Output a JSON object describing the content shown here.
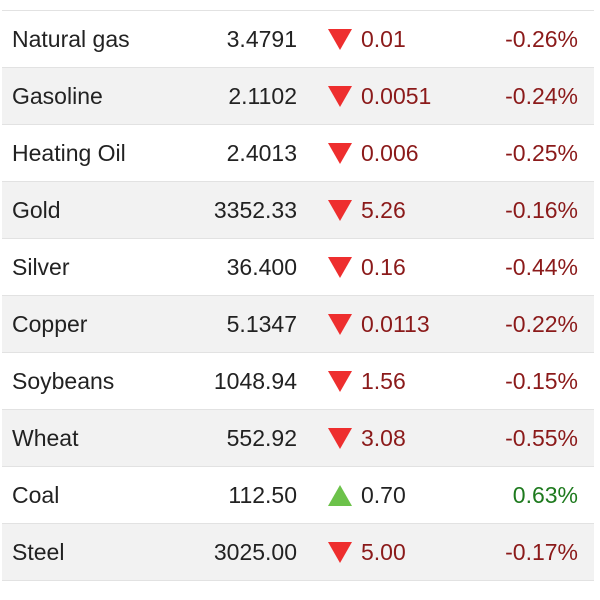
{
  "colors": {
    "down_arrow": "#ee2e2e",
    "up_arrow": "#6cc24a",
    "negative_text": "#8b1a1a",
    "positive_text": "#1e7a1e"
  },
  "rows": [
    {
      "name": "Natural gas",
      "price": "3.4791",
      "direction": "down",
      "direction_icon": "down-triangle-icon",
      "change": "0.01",
      "percent": "-0.26%"
    },
    {
      "name": "Gasoline",
      "price": "2.1102",
      "direction": "down",
      "direction_icon": "down-triangle-icon",
      "change": "0.0051",
      "percent": "-0.24%"
    },
    {
      "name": "Heating Oil",
      "price": "2.4013",
      "direction": "down",
      "direction_icon": "down-triangle-icon",
      "change": "0.006",
      "percent": "-0.25%"
    },
    {
      "name": "Gold",
      "price": "3352.33",
      "direction": "down",
      "direction_icon": "down-triangle-icon",
      "change": "5.26",
      "percent": "-0.16%"
    },
    {
      "name": "Silver",
      "price": "36.400",
      "direction": "down",
      "direction_icon": "down-triangle-icon",
      "change": "0.16",
      "percent": "-0.44%"
    },
    {
      "name": "Copper",
      "price": "5.1347",
      "direction": "down",
      "direction_icon": "down-triangle-icon",
      "change": "0.0113",
      "percent": "-0.22%"
    },
    {
      "name": "Soybeans",
      "price": "1048.94",
      "direction": "down",
      "direction_icon": "down-triangle-icon",
      "change": "1.56",
      "percent": "-0.15%"
    },
    {
      "name": "Wheat",
      "price": "552.92",
      "direction": "down",
      "direction_icon": "down-triangle-icon",
      "change": "3.08",
      "percent": "-0.55%"
    },
    {
      "name": "Coal",
      "price": "112.50",
      "direction": "up",
      "direction_icon": "up-triangle-icon",
      "change": "0.70",
      "percent": "0.63%"
    },
    {
      "name": "Steel",
      "price": "3025.00",
      "direction": "down",
      "direction_icon": "down-triangle-icon",
      "change": "5.00",
      "percent": "-0.17%"
    }
  ]
}
